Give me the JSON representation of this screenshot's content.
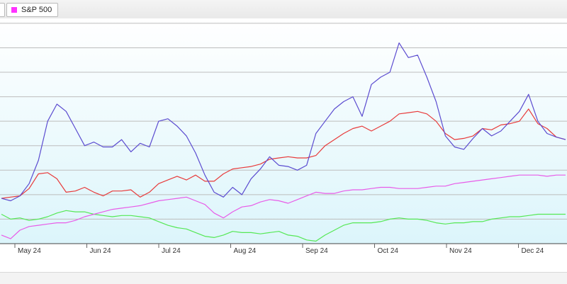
{
  "legend": {
    "label": "S&P 500",
    "color": "#ff33ff"
  },
  "colors": {
    "line1": "#5b4bd0",
    "line2": "#e83a3a",
    "line3": "#e85ce8",
    "line4": "#55e855"
  },
  "chart_data": {
    "type": "line",
    "x": [
      "Apr 28",
      "May 1",
      "May 4",
      "May 8",
      "May 12",
      "May 16",
      "May 20",
      "May 24",
      "May 28",
      "Jun 1",
      "Jun 5",
      "Jun 9",
      "Jun 13",
      "Jun 17",
      "Jun 21",
      "Jun 25",
      "Jun 29",
      "Jul 3",
      "Jul 7",
      "Jul 11",
      "Jul 15",
      "Jul 19",
      "Jul 23",
      "Jul 27",
      "Jul 31",
      "Aug 4",
      "Aug 8",
      "Aug 12",
      "Aug 16",
      "Aug 20",
      "Aug 24",
      "Aug 28",
      "Sep 1",
      "Sep 5",
      "Sep 9",
      "Sep 13",
      "Sep 17",
      "Sep 21",
      "Sep 25",
      "Sep 29",
      "Oct 3",
      "Oct 7",
      "Oct 11",
      "Oct 15",
      "Oct 19",
      "Oct 23",
      "Oct 27",
      "Oct 31",
      "Nov 4",
      "Nov 8",
      "Nov 12",
      "Nov 16",
      "Nov 20",
      "Nov 24",
      "Nov 28",
      "Dec 2",
      "Dec 6",
      "Dec 10",
      "Dec 14",
      "Dec 18",
      "Dec 22",
      "Dec 26"
    ],
    "series": [
      {
        "values": [
          -11.5,
          -12.5,
          -10.5,
          -5.5,
          4,
          20,
          27,
          24,
          17,
          10,
          11.5,
          9.5,
          9.5,
          12.5,
          7.5,
          11,
          9.5,
          20,
          21,
          18,
          14,
          7,
          -2,
          -9,
          -11,
          -7,
          -10,
          -3.5,
          0.5,
          5.5,
          2,
          1.5,
          0,
          2,
          15,
          20,
          25,
          28,
          30,
          22,
          35,
          38,
          40,
          52,
          46,
          47,
          38,
          28,
          14,
          9.5,
          8.5,
          13,
          17,
          14,
          16,
          20,
          24,
          31,
          20,
          15,
          13.5,
          12.5
        ]
      },
      {
        "values": [
          -11.5,
          -11,
          -10.5,
          -7.5,
          -1.5,
          -1,
          -3.5,
          -9,
          -8.5,
          -7,
          -9,
          -10.5,
          -8.5,
          -8.5,
          -8,
          -11,
          -9,
          -5.5,
          -4,
          -2.5,
          -4,
          -2,
          -4.5,
          -4.5,
          -1.5,
          0.5,
          1,
          1.5,
          2.5,
          4.5,
          5,
          5.5,
          5,
          5,
          6,
          10,
          12.5,
          15,
          17,
          18,
          16,
          18,
          20,
          23,
          23.5,
          24,
          23,
          20,
          15,
          12.5,
          13,
          14,
          17,
          16.5,
          18.5,
          19,
          20,
          25,
          19,
          17,
          13.5,
          12.5
        ]
      },
      {
        "values": [
          -26.5,
          -28,
          -24.5,
          -23,
          -22.5,
          -22,
          -21.5,
          -21.5,
          -20.5,
          -19,
          -18,
          -17,
          -16,
          -15.5,
          -15,
          -14.5,
          -13.5,
          -12.5,
          -12,
          -11.5,
          -11,
          -12.5,
          -14,
          -17.5,
          -19.5,
          -17,
          -15,
          -14.5,
          -13,
          -12,
          -12.5,
          -13.5,
          -12,
          -10.5,
          -9,
          -9.5,
          -9.5,
          -8.5,
          -8,
          -8,
          -7.5,
          -7,
          -7,
          -7.5,
          -7.5,
          -7.5,
          -7,
          -6.5,
          -6.5,
          -5.5,
          -5,
          -4.5,
          -4,
          -3.5,
          -3,
          -2.5,
          -2,
          -2,
          -2,
          -2.5,
          -2,
          -2
        ]
      },
      {
        "values": [
          -18,
          -20,
          -19.5,
          -20.5,
          -20,
          -19,
          -17.5,
          -16.5,
          -17,
          -17,
          -18,
          -18.5,
          -19,
          -18.5,
          -18.5,
          -19,
          -19.5,
          -21,
          -22.5,
          -23.5,
          -24,
          -25.5,
          -27,
          -27.5,
          -26.5,
          -25,
          -25.5,
          -25.5,
          -26,
          -25.5,
          -25,
          -26.5,
          -27,
          -28.5,
          -29,
          -26.5,
          -24.5,
          -22.5,
          -21.5,
          -21.5,
          -21.5,
          -21,
          -20,
          -19.5,
          -20,
          -20,
          -20.5,
          -21.5,
          -22,
          -21.5,
          -21.5,
          -21,
          -21,
          -20,
          -19.5,
          -19,
          -19,
          -18.5,
          -18,
          -18,
          -18,
          -18
        ]
      }
    ],
    "x_tick_labels": [
      "May 24",
      "Jun 24",
      "Jul 24",
      "Aug 24",
      "Sep 24",
      "Oct 24",
      "Nov 24",
      "Dec 24"
    ],
    "ylim": [
      -30,
      62
    ],
    "grid": true
  }
}
